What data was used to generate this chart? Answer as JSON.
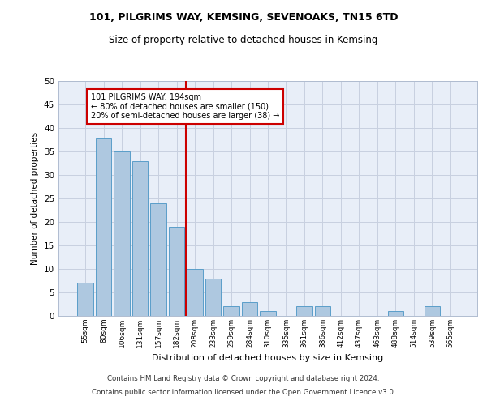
{
  "title1": "101, PILGRIMS WAY, KEMSING, SEVENOAKS, TN15 6TD",
  "title2": "Size of property relative to detached houses in Kemsing",
  "xlabel": "Distribution of detached houses by size in Kemsing",
  "ylabel": "Number of detached properties",
  "categories": [
    "55sqm",
    "80sqm",
    "106sqm",
    "131sqm",
    "157sqm",
    "182sqm",
    "208sqm",
    "233sqm",
    "259sqm",
    "284sqm",
    "310sqm",
    "335sqm",
    "361sqm",
    "386sqm",
    "412sqm",
    "437sqm",
    "463sqm",
    "488sqm",
    "514sqm",
    "539sqm",
    "565sqm"
  ],
  "values": [
    7,
    38,
    35,
    33,
    24,
    19,
    10,
    8,
    2,
    3,
    1,
    0,
    2,
    2,
    0,
    0,
    0,
    1,
    0,
    2,
    0
  ],
  "bar_color": "#aec8e0",
  "bar_edge_color": "#5a9ec9",
  "vline_x": 5.5,
  "vline_color": "#cc0000",
  "annotation_text": "101 PILGRIMS WAY: 194sqm\n← 80% of detached houses are smaller (150)\n20% of semi-detached houses are larger (38) →",
  "annotation_box_color": "#cc0000",
  "ylim": [
    0,
    50
  ],
  "yticks": [
    0,
    5,
    10,
    15,
    20,
    25,
    30,
    35,
    40,
    45,
    50
  ],
  "footer1": "Contains HM Land Registry data © Crown copyright and database right 2024.",
  "footer2": "Contains public sector information licensed under the Open Government Licence v3.0.",
  "bg_color": "#e8eef8",
  "grid_color": "#c8d0e0"
}
